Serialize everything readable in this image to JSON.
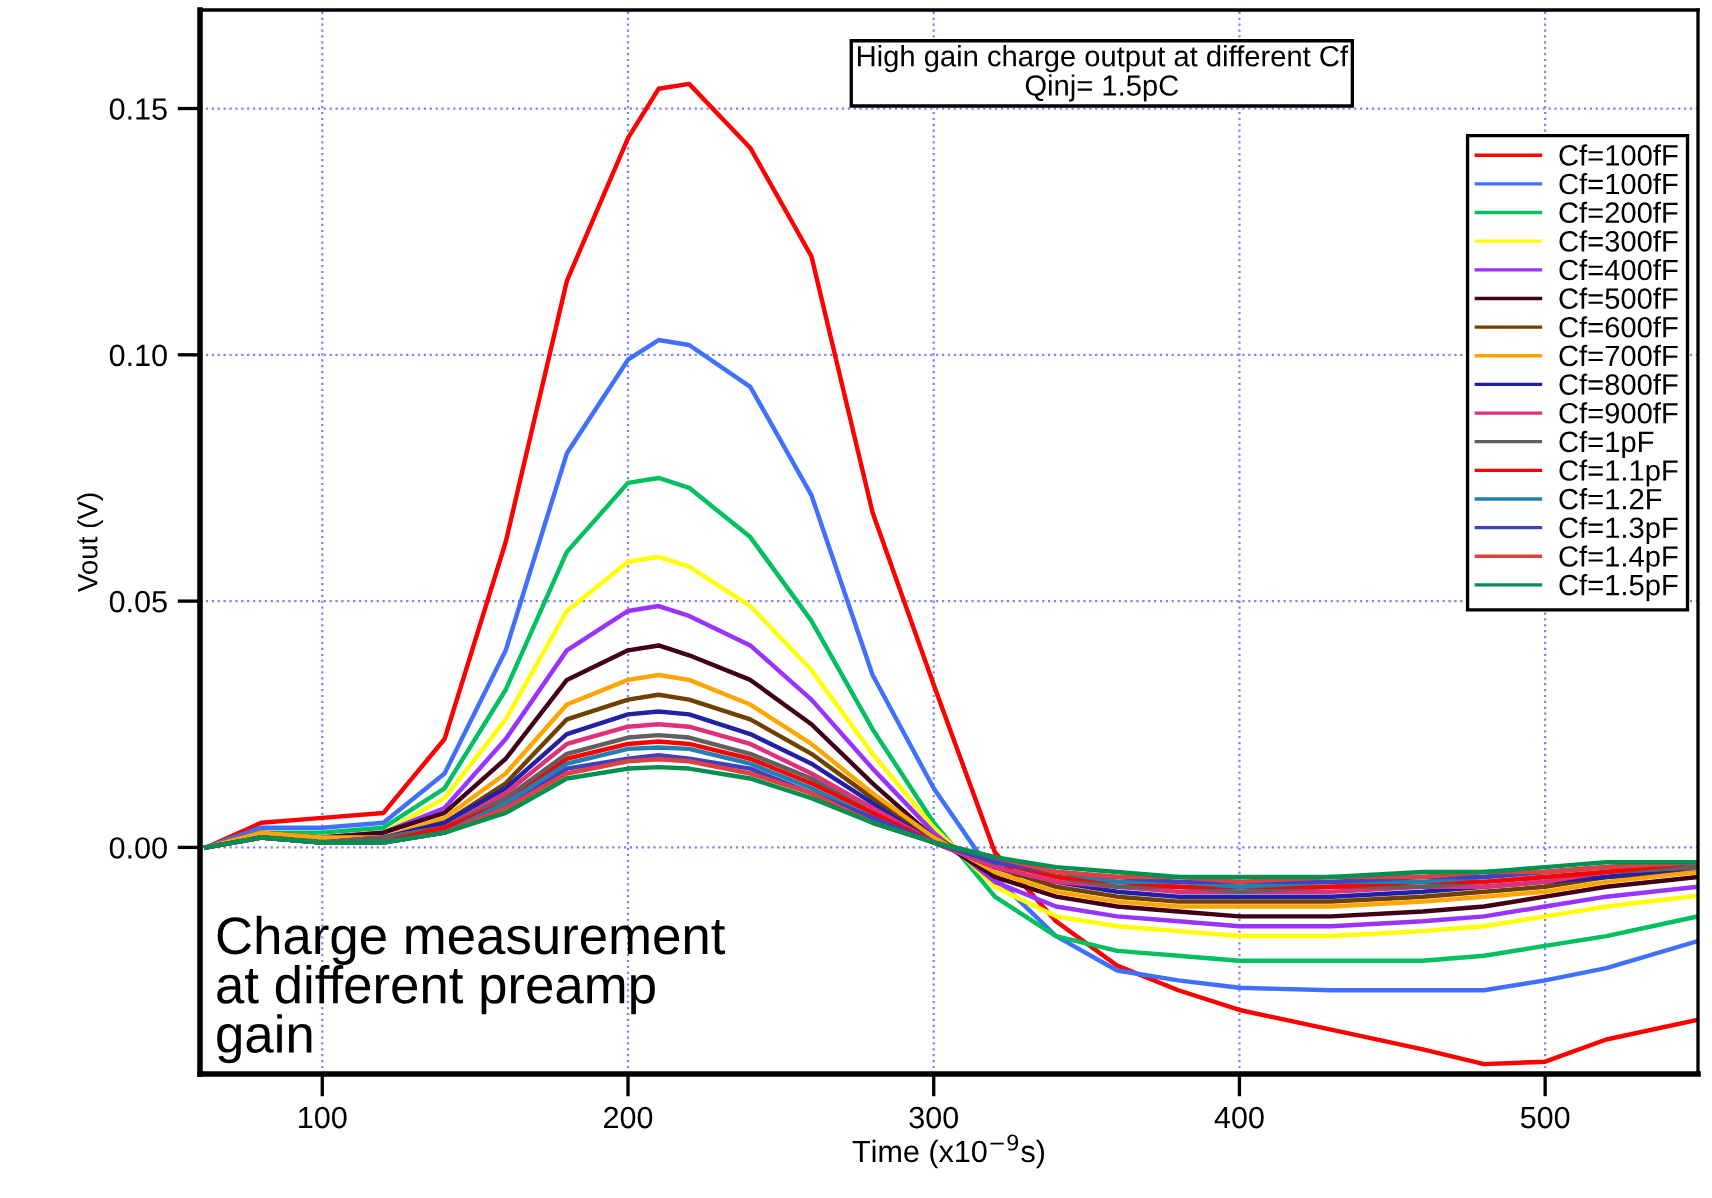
{
  "chart_data": {
    "type": "line",
    "title": "High gain charge output at different Cf\nQinj= 1.5pC",
    "xlabel": "Time (x10$^{−9}$s)",
    "ylabel": "Vout (V)",
    "annotations": [
      "Charge measurement\nat different preamp\ngain"
    ],
    "x": [
      62,
      80,
      100,
      120,
      140,
      160,
      180,
      200,
      210,
      220,
      240,
      260,
      280,
      300,
      320,
      340,
      360,
      380,
      400,
      430,
      460,
      480,
      500,
      520,
      550
    ],
    "xlim": [
      60,
      550
    ],
    "xticks": [
      100,
      200,
      300,
      400,
      500
    ],
    "ylim": [
      -0.046,
      0.17
    ],
    "yticks": [
      {
        "value": 0,
        "label": "0.00"
      },
      {
        "value": 0.05,
        "label": "0.05"
      },
      {
        "value": 0.1,
        "label": "0.10"
      },
      {
        "value": 0.15,
        "label": "0.15"
      }
    ],
    "grid": true,
    "legend": "top right",
    "line_style": "solid",
    "marker": "none",
    "series": [
      {
        "name": "Cf=100fF",
        "color": "#ff0000",
        "values": [
          0,
          0.005,
          0.006,
          0.007,
          0.022,
          0.062,
          0.115,
          0.144,
          0.154,
          0.155,
          0.142,
          0.12,
          0.068,
          0.033,
          -0.001,
          -0.015,
          -0.024,
          -0.029,
          -0.033,
          -0.037,
          -0.041,
          -0.044,
          -0.0435,
          -0.039,
          -0.035
        ]
      },
      {
        "name": "Cf=100fF",
        "color": "#4070ff",
        "values": [
          0,
          0.004,
          0.004,
          0.005,
          0.015,
          0.04,
          0.08,
          0.099,
          0.103,
          0.102,
          0.0935,
          0.0715,
          0.035,
          0.012,
          -0.006,
          -0.018,
          -0.025,
          -0.027,
          -0.0285,
          -0.029,
          -0.029,
          -0.029,
          -0.027,
          -0.0245,
          -0.019
        ]
      },
      {
        "name": "Cf=200fF",
        "color": "#00c060",
        "values": [
          0,
          0.003,
          0.003,
          0.004,
          0.012,
          0.032,
          0.06,
          0.074,
          0.075,
          0.073,
          0.063,
          0.046,
          0.024,
          0.005,
          -0.01,
          -0.018,
          -0.021,
          -0.022,
          -0.023,
          -0.023,
          -0.023,
          -0.022,
          -0.02,
          -0.018,
          -0.014
        ]
      },
      {
        "name": "Cf=300fF",
        "color": "#ffff00",
        "values": [
          null,
          null,
          0.002,
          0.003,
          0.01,
          0.026,
          0.048,
          0.058,
          0.059,
          0.057,
          0.049,
          0.036,
          0.019,
          0.004,
          -0.008,
          -0.014,
          -0.016,
          -0.017,
          -0.018,
          -0.018,
          -0.017,
          -0.016,
          -0.014,
          -0.012,
          -0.0098
        ]
      },
      {
        "name": "Cf=400fF",
        "color": "#9933ff",
        "values": [
          null,
          null,
          0.002,
          0.003,
          0.008,
          0.022,
          0.04,
          0.048,
          0.049,
          0.047,
          0.041,
          0.03,
          0.016,
          0.003,
          -0.007,
          -0.012,
          -0.014,
          -0.015,
          -0.016,
          -0.016,
          -0.015,
          -0.014,
          -0.012,
          -0.01,
          -0.008
        ]
      },
      {
        "name": "Cf=500fF",
        "color": "#400018",
        "values": [
          0,
          0.003,
          0.002,
          0.003,
          0.007,
          0.018,
          0.034,
          0.04,
          0.041,
          0.039,
          0.034,
          0.025,
          0.013,
          0.002,
          -0.006,
          -0.01,
          -0.012,
          -0.013,
          -0.014,
          -0.014,
          -0.013,
          -0.012,
          -0.01,
          -0.008,
          -0.006
        ]
      },
      {
        "name": "Cf=600fF",
        "color": "#704000",
        "values": [
          0,
          0.002,
          0.001,
          0.002,
          0.005,
          0.013,
          0.026,
          0.03,
          0.031,
          0.03,
          0.026,
          0.019,
          0.01,
          0.002,
          -0.004,
          -0.008,
          -0.01,
          -0.011,
          -0.011,
          -0.011,
          -0.01,
          -0.009,
          -0.008,
          -0.006,
          -0.005
        ]
      },
      {
        "name": "Cf=700fF",
        "color": "#ffa500",
        "values": [
          0,
          0.003,
          0.002,
          0.002,
          0.006,
          0.015,
          0.029,
          0.034,
          0.035,
          0.034,
          0.029,
          0.021,
          0.011,
          0.002,
          -0.005,
          -0.009,
          -0.011,
          -0.012,
          -0.012,
          -0.012,
          -0.011,
          -0.01,
          -0.009,
          -0.007,
          -0.005
        ]
      },
      {
        "name": "Cf=800fF",
        "color": "#2020a8",
        "values": [
          0,
          0.002,
          0.001,
          0.002,
          0.005,
          0.012,
          0.023,
          0.027,
          0.0276,
          0.027,
          0.023,
          0.017,
          0.009,
          0.001,
          -0.004,
          -0.007,
          -0.009,
          -0.01,
          -0.01,
          -0.01,
          -0.009,
          -0.008,
          -0.007,
          -0.006,
          -0.004
        ]
      },
      {
        "name": "Cf=900fF",
        "color": "#e0307a",
        "values": [
          0,
          0.002,
          0.001,
          0.002,
          0.004,
          0.011,
          0.021,
          0.0245,
          0.025,
          0.0245,
          0.021,
          0.015,
          0.008,
          0.001,
          -0.004,
          -0.007,
          -0.008,
          -0.009,
          -0.009,
          -0.009,
          -0.008,
          -0.008,
          -0.007,
          -0.005,
          -0.004
        ]
      },
      {
        "name": "Cf=1pF",
        "color": "#606060",
        "values": [
          0,
          0.002,
          0.001,
          0.002,
          0.004,
          0.01,
          0.019,
          0.0223,
          0.0228,
          0.0223,
          0.019,
          0.014,
          0.007,
          0.001,
          -0.003,
          -0.006,
          -0.008,
          -0.008,
          -0.009,
          -0.008,
          -0.008,
          -0.007,
          -0.006,
          -0.005,
          -0.004
        ]
      },
      {
        "name": "Cf=1.1pF",
        "color": "#ff0000",
        "values": [
          0,
          0.002,
          0.001,
          0.001,
          0.004,
          0.009,
          0.018,
          0.021,
          0.0215,
          0.021,
          0.018,
          0.013,
          0.007,
          0.001,
          -0.003,
          -0.006,
          -0.007,
          -0.008,
          -0.008,
          -0.008,
          -0.007,
          -0.007,
          -0.006,
          -0.005,
          -0.003
        ]
      },
      {
        "name": "Cf=1.2F",
        "color": "#2080b0",
        "values": [
          null,
          null,
          null,
          0.001,
          0.003,
          0.009,
          0.017,
          0.02,
          0.0203,
          0.02,
          0.017,
          0.012,
          0.006,
          0.001,
          -0.003,
          -0.005,
          -0.007,
          -0.007,
          -0.008,
          -0.007,
          -0.007,
          -0.006,
          -0.005,
          -0.004,
          -0.003
        ]
      },
      {
        "name": "Cf=1.3pF",
        "color": "#4040c0",
        "values": [
          0,
          0.002,
          0.001,
          0.001,
          0.003,
          0.008,
          0.016,
          0.018,
          0.0187,
          0.018,
          0.016,
          0.011,
          0.006,
          0.001,
          -0.003,
          -0.005,
          -0.006,
          -0.007,
          -0.007,
          -0.007,
          -0.006,
          -0.006,
          -0.005,
          -0.004,
          -0.003
        ]
      },
      {
        "name": "Cf=1.4pF",
        "color": "#e04040",
        "values": [
          0,
          0.002,
          0.001,
          0.001,
          0.003,
          0.008,
          0.015,
          0.0175,
          0.0179,
          0.0175,
          0.015,
          0.011,
          0.005,
          0.001,
          -0.002,
          -0.005,
          -0.006,
          -0.006,
          -0.007,
          -0.006,
          -0.006,
          -0.005,
          -0.005,
          -0.004,
          -0.003
        ]
      },
      {
        "name": "Cf=1.5pF",
        "color": "#009050",
        "values": [
          0,
          0.002,
          0.001,
          0.001,
          0.003,
          0.007,
          0.014,
          0.016,
          0.0163,
          0.016,
          0.014,
          0.01,
          0.005,
          0.001,
          -0.002,
          -0.004,
          -0.005,
          -0.006,
          -0.006,
          -0.006,
          -0.005,
          -0.005,
          -0.004,
          -0.003,
          -0.003
        ]
      }
    ]
  }
}
